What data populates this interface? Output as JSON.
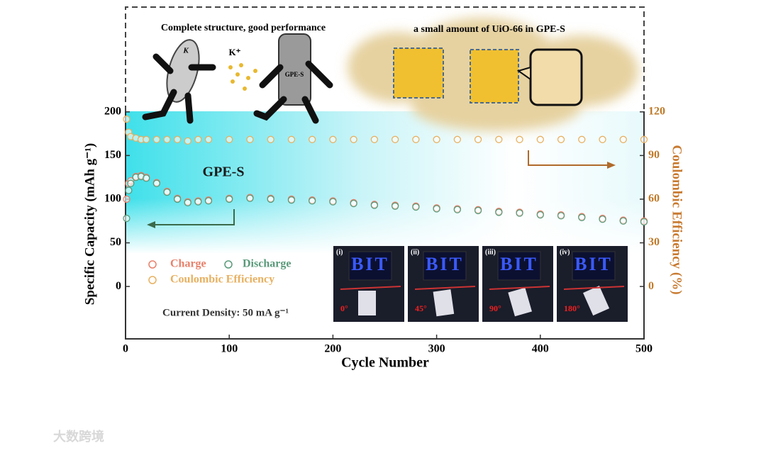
{
  "chart_data": {
    "type": "scatter",
    "xlabel": "Cycle Number",
    "ylabel": "Specific Capacity (mAh g⁻¹)",
    "y2label": "Coulombic Efficiency (%)",
    "xlim": [
      0,
      500
    ],
    "xticks": [
      0,
      100,
      200,
      300,
      400,
      500
    ],
    "ylim": [
      -60,
      320
    ],
    "yticks": [
      0,
      50,
      100,
      150,
      200
    ],
    "y2lim": [
      -36,
      192
    ],
    "y2ticks": [
      0,
      30,
      60,
      90,
      120
    ],
    "x": [
      1,
      3,
      5,
      10,
      15,
      20,
      30,
      40,
      50,
      60,
      70,
      80,
      100,
      120,
      140,
      160,
      180,
      200,
      220,
      240,
      260,
      280,
      300,
      320,
      340,
      360,
      380,
      400,
      420,
      440,
      460,
      480,
      500
    ],
    "series": [
      {
        "name": "Charge",
        "color": "#e8806a",
        "axis": "y",
        "values": [
          100,
          118,
          121,
          126,
          127,
          125,
          119,
          109,
          101,
          97,
          98,
          99,
          101,
          102,
          101,
          100,
          99,
          98,
          96,
          94,
          93,
          92,
          90,
          89,
          88,
          86,
          85,
          83,
          82,
          80,
          78,
          76,
          75
        ]
      },
      {
        "name": "Discharge",
        "color": "#5a9a7a",
        "axis": "y",
        "values": [
          78,
          110,
          118,
          125,
          126,
          124,
          118,
          108,
          100,
          96,
          97,
          98,
          100,
          101,
          100,
          99,
          98,
          97,
          95,
          93,
          92,
          91,
          89,
          88,
          87,
          85,
          84,
          82,
          81,
          79,
          77,
          75,
          74
        ]
      },
      {
        "name": "Coulombic Efficiency",
        "color": "#e8b060",
        "axis": "y2",
        "values": [
          115,
          106,
          103,
          102,
          101,
          101,
          101,
          101,
          101,
          100,
          101,
          101,
          101,
          101,
          101,
          101,
          101,
          101,
          101,
          101,
          101,
          101,
          101,
          101,
          101,
          101,
          101,
          101,
          101,
          101,
          101,
          101,
          101
        ]
      }
    ],
    "annotations": {
      "sample": "GPE-S",
      "current": "Current Density: 50 mA g⁻¹"
    },
    "illustration": {
      "left_caption": "Complete structure, good performance",
      "right_caption": "a small amount of UiO-66 in GPE-S",
      "ion": "K⁺",
      "anode": "K",
      "electrolyte": "GPE-S"
    },
    "photos": {
      "sign": "BIT",
      "panels": [
        {
          "label": "(i)",
          "angle": "0°"
        },
        {
          "label": "(ii)",
          "angle": "45°"
        },
        {
          "label": "(iii)",
          "angle": "90°"
        },
        {
          "label": "(iv)",
          "angle": "180°"
        }
      ]
    },
    "watermark": "大数跨境"
  }
}
